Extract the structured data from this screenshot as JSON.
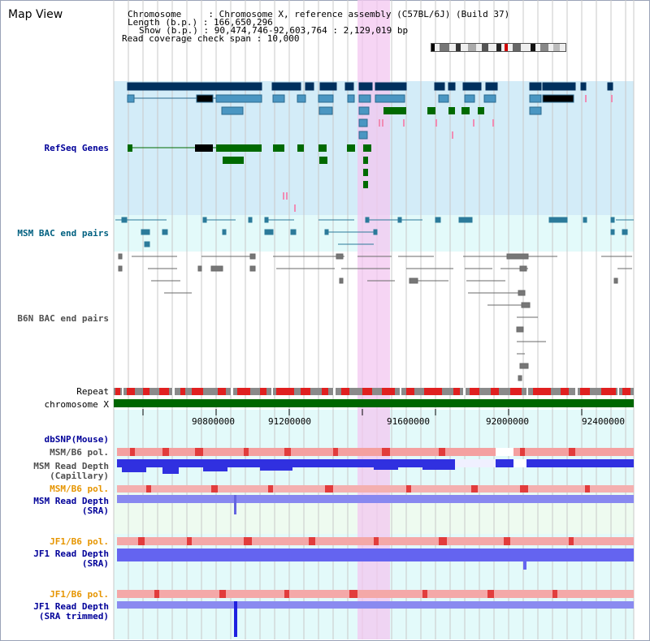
{
  "page": {
    "title": "Map View"
  },
  "info": {
    "line1": "Chromosome     : Chromosome X, reference assembly (C57BL/6J) (Build 37)",
    "line2": "Length (b.p.) : 166,650,296",
    "line3": "Show (b.p.) : 90,474,746-92,603,764 : 2,129,019 bp",
    "line4": "Read coverage check span : 10,000"
  },
  "tracks": {
    "refseq": "RefSeq Genes",
    "msm_bac": "MSM BAC end pairs",
    "b6n_bac": "B6N BAC end pairs",
    "repeat": "Repeat",
    "chromosome": "chromosome X",
    "dbsnp": "dbSNP(Mouse)",
    "msm_b6_pol_1": "MSM/B6 pol.",
    "msm_read_depth_cap_1": "MSM Read Depth",
    "msm_read_depth_cap_2": "(Capillary)",
    "msm_b6_pol_2": "MSM/B6 pol.",
    "msm_read_depth_sra_1": "MSM Read Depth",
    "msm_read_depth_sra_2": "(SRA)",
    "jf1_b6_pol_1": "JF1/B6 pol.",
    "jf1_read_depth_sra_1": "JF1 Read Depth",
    "jf1_read_depth_sra_2": "(SRA)",
    "jf1_b6_pol_2": "JF1/B6 pol.",
    "jf1_read_depth_trim_1": "JF1 Read Depth",
    "jf1_read_depth_trim_2": "(SRA trimmed)"
  },
  "axis": {
    "ticks": [
      "90800000",
      "91200000",
      "91600000",
      "92000000",
      "92400000"
    ]
  },
  "colors": {
    "refseq_bg": "#d3ecf8",
    "msm_bac_bg": "#e3fafa",
    "gene_dark": "#00305e",
    "gene_mid": "#4a96c2",
    "gene_green": "#006a00",
    "highlight": "#f3c7f0",
    "label_blue": "#000099",
    "label_teal": "#006080",
    "label_orange": "#e69500",
    "label_gray": "#505050",
    "chromosome_green": "#006600"
  }
}
